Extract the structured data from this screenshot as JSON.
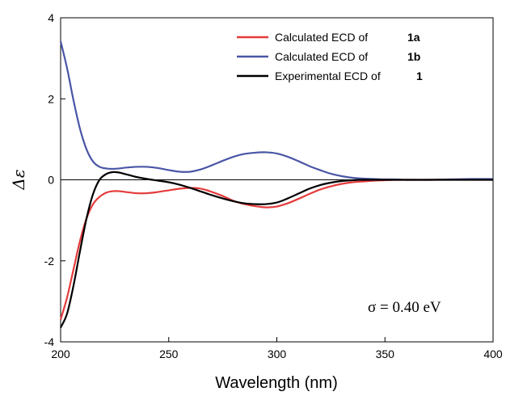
{
  "chart_data": {
    "type": "line",
    "xlabel": "Wavelength (nm)",
    "ylabel": "Δε",
    "xlim": [
      200,
      400
    ],
    "ylim": [
      -4,
      4
    ],
    "xticks": [
      200,
      250,
      300,
      350,
      400
    ],
    "yticks": [
      -4,
      -2,
      0,
      2,
      4
    ],
    "grid": false,
    "legend_position": "top-right",
    "annotation": "σ = 0.40  eV",
    "series": [
      {
        "name": "Calculated ECD of",
        "compound": "1a",
        "color": "#e53b3b",
        "x": [
          200,
          203,
          206,
          209,
          212,
          215,
          218,
          221,
          224,
          227,
          230,
          235,
          240,
          245,
          250,
          255,
          260,
          265,
          270,
          275,
          280,
          285,
          290,
          295,
          300,
          305,
          310,
          315,
          320,
          325,
          330,
          335,
          340,
          345,
          350,
          355,
          360,
          370,
          380,
          390,
          400
        ],
        "y": [
          -3.45,
          -2.9,
          -2.2,
          -1.5,
          -0.95,
          -0.6,
          -0.42,
          -0.32,
          -0.28,
          -0.28,
          -0.3,
          -0.33,
          -0.33,
          -0.3,
          -0.26,
          -0.22,
          -0.2,
          -0.22,
          -0.3,
          -0.4,
          -0.52,
          -0.6,
          -0.65,
          -0.68,
          -0.66,
          -0.58,
          -0.47,
          -0.35,
          -0.24,
          -0.16,
          -0.1,
          -0.06,
          -0.04,
          -0.02,
          -0.01,
          0,
          0,
          0,
          0.01,
          0.01,
          0.01
        ]
      },
      {
        "name": "Calculated ECD of",
        "compound": "1b",
        "color": "#4a56a6",
        "x": [
          200,
          203,
          206,
          209,
          212,
          215,
          218,
          221,
          224,
          227,
          230,
          235,
          240,
          245,
          250,
          255,
          260,
          265,
          270,
          275,
          280,
          285,
          290,
          295,
          300,
          305,
          310,
          315,
          320,
          325,
          330,
          335,
          340,
          345,
          350,
          355,
          360,
          370,
          380,
          390,
          400
        ],
        "y": [
          3.42,
          2.75,
          1.95,
          1.25,
          0.75,
          0.45,
          0.32,
          0.28,
          0.27,
          0.28,
          0.3,
          0.32,
          0.32,
          0.29,
          0.24,
          0.2,
          0.2,
          0.26,
          0.36,
          0.47,
          0.57,
          0.64,
          0.67,
          0.68,
          0.65,
          0.57,
          0.46,
          0.34,
          0.24,
          0.15,
          0.09,
          0.05,
          0.03,
          0.02,
          0.01,
          0.01,
          0,
          0,
          0.01,
          0.02,
          0.02
        ]
      },
      {
        "name": "Experimental ECD of",
        "compound": "1",
        "color": "#000000",
        "x": [
          200,
          203,
          206,
          209,
          212,
          215,
          218,
          221,
          224,
          227,
          230,
          235,
          240,
          245,
          250,
          255,
          260,
          265,
          270,
          275,
          280,
          285,
          290,
          295,
          300,
          305,
          310,
          315,
          320,
          325,
          330,
          335,
          340,
          345,
          350,
          355,
          360,
          370,
          380,
          390,
          400
        ],
        "y": [
          -3.65,
          -3.3,
          -2.6,
          -1.75,
          -0.95,
          -0.35,
          0,
          0.14,
          0.19,
          0.18,
          0.14,
          0.07,
          0.02,
          -0.02,
          -0.06,
          -0.12,
          -0.2,
          -0.29,
          -0.38,
          -0.46,
          -0.53,
          -0.58,
          -0.6,
          -0.6,
          -0.56,
          -0.46,
          -0.34,
          -0.22,
          -0.13,
          -0.07,
          -0.03,
          -0.01,
          0,
          0,
          0,
          0,
          0,
          0,
          0,
          0,
          0
        ]
      }
    ]
  }
}
